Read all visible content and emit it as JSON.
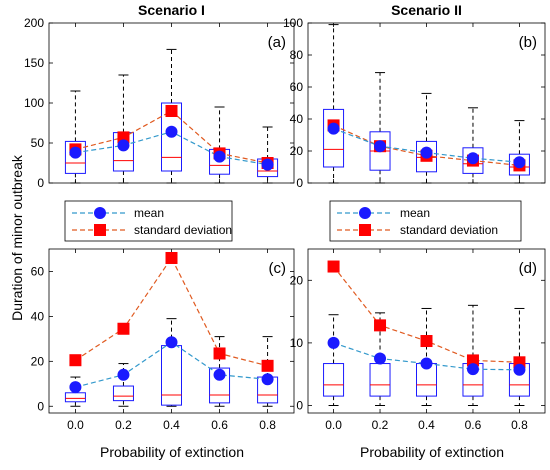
{
  "figure": {
    "ylabel": "Duration of minor outbreak",
    "xlabel": "Probability of extinction"
  },
  "legend": {
    "mean_label": "mean",
    "sd_label": "standard deviation",
    "placement": "below top panels"
  },
  "colors": {
    "box": "#1a1aff",
    "median": "#ff0000",
    "mean": "#1a1aff",
    "sd": "#ff0000",
    "whisker": "#000000",
    "mean_line": "#3399cc",
    "sd_line": "#e05a20"
  },
  "chart_data": [
    {
      "id": "a",
      "title": "Scenario I",
      "panel_label": "(a)",
      "type": "box",
      "x": [
        0.0,
        0.2,
        0.4,
        0.6,
        0.8
      ],
      "ylim": [
        0,
        200
      ],
      "yticks": [
        0,
        50,
        100,
        150,
        200
      ],
      "xtick_labels": [],
      "grid": false,
      "boxes": [
        {
          "whislo": 0,
          "q1": 12,
          "med": 25,
          "q3": 52,
          "whishi": 115
        },
        {
          "whislo": 0,
          "q1": 15,
          "med": 28,
          "q3": 63,
          "whishi": 135
        },
        {
          "whislo": 0,
          "q1": 15,
          "med": 32,
          "q3": 100,
          "whishi": 167
        },
        {
          "whislo": 0,
          "q1": 11,
          "med": 22,
          "q3": 42,
          "whishi": 95
        },
        {
          "whislo": 0,
          "q1": 8,
          "med": 15,
          "q3": 30,
          "whishi": 70
        }
      ],
      "series": [
        {
          "name": "mean",
          "values": [
            38,
            47,
            64,
            33,
            23
          ]
        },
        {
          "name": "standard deviation",
          "values": [
            42,
            57,
            90,
            37,
            25
          ]
        }
      ]
    },
    {
      "id": "b",
      "title": "Scenario II",
      "panel_label": "(b)",
      "type": "box",
      "x": [
        0.0,
        0.2,
        0.4,
        0.6,
        0.8
      ],
      "ylim": [
        0,
        100
      ],
      "yticks": [
        0,
        20,
        40,
        60,
        80,
        100
      ],
      "xtick_labels": [],
      "grid": false,
      "boxes": [
        {
          "whislo": 0,
          "q1": 10,
          "med": 21,
          "q3": 46,
          "whishi": 99
        },
        {
          "whislo": 0,
          "q1": 8,
          "med": 20,
          "q3": 32,
          "whishi": 69
        },
        {
          "whislo": 0,
          "q1": 7,
          "med": 16,
          "q3": 26,
          "whishi": 56
        },
        {
          "whislo": 0,
          "q1": 6,
          "med": 12,
          "q3": 22,
          "whishi": 47
        },
        {
          "whislo": 0,
          "q1": 5,
          "med": 10,
          "q3": 18,
          "whishi": 39
        }
      ],
      "series": [
        {
          "name": "mean",
          "values": [
            34,
            23,
            19,
            15.5,
            13
          ]
        },
        {
          "name": "standard deviation",
          "values": [
            36,
            23,
            17,
            14,
            11
          ]
        }
      ]
    },
    {
      "id": "c",
      "title": "",
      "panel_label": "(c)",
      "type": "box",
      "x": [
        0.0,
        0.2,
        0.4,
        0.6,
        0.8
      ],
      "ylim": [
        -3,
        70
      ],
      "yticks": [
        0,
        20,
        40,
        60
      ],
      "xtick_labels": [
        "0.0",
        "0.2",
        "0.4",
        "0.6",
        "0.8"
      ],
      "grid": false,
      "boxes": [
        {
          "whislo": 0,
          "q1": 2,
          "med": 3.5,
          "q3": 6,
          "whishi": 13
        },
        {
          "whislo": 0,
          "q1": 2.5,
          "med": 4.5,
          "q3": 9,
          "whishi": 19
        },
        {
          "whislo": 0,
          "q1": 0.5,
          "med": 5,
          "q3": 27,
          "whishi": 39
        },
        {
          "whislo": 0,
          "q1": 1.5,
          "med": 5,
          "q3": 17,
          "whishi": 31
        },
        {
          "whislo": 0,
          "q1": 1.5,
          "med": 5,
          "q3": 13,
          "whishi": 31
        }
      ],
      "series": [
        {
          "name": "mean",
          "values": [
            8.5,
            14,
            28.5,
            14,
            12
          ]
        },
        {
          "name": "standard deviation",
          "values": [
            20.5,
            34.5,
            66,
            23.5,
            18
          ]
        }
      ]
    },
    {
      "id": "d",
      "title": "",
      "panel_label": "(d)",
      "type": "box",
      "x": [
        0.0,
        0.2,
        0.4,
        0.6,
        0.8
      ],
      "ylim": [
        -1.2,
        25
      ],
      "yticks": [
        0,
        10,
        20
      ],
      "xtick_labels": [
        "0.0",
        "0.2",
        "0.4",
        "0.6",
        "0.8"
      ],
      "grid": false,
      "boxes": [
        {
          "whislo": 0,
          "q1": 1.5,
          "med": 3.3,
          "q3": 6.7,
          "whishi": 14.5
        },
        {
          "whislo": 0,
          "q1": 1.5,
          "med": 3.3,
          "q3": 6.7,
          "whishi": 14.8
        },
        {
          "whislo": 0,
          "q1": 1.5,
          "med": 3.3,
          "q3": 6.7,
          "whishi": 15.5
        },
        {
          "whislo": 0,
          "q1": 1.5,
          "med": 3.3,
          "q3": 6.7,
          "whishi": 16
        },
        {
          "whislo": 0,
          "q1": 1.5,
          "med": 3.3,
          "q3": 6.7,
          "whishi": 15.5
        }
      ],
      "series": [
        {
          "name": "mean",
          "values": [
            10,
            7.5,
            6.7,
            5.8,
            5.7
          ]
        },
        {
          "name": "standard deviation",
          "values": [
            22.2,
            12.8,
            10.3,
            7.2,
            6.9
          ]
        }
      ]
    }
  ]
}
